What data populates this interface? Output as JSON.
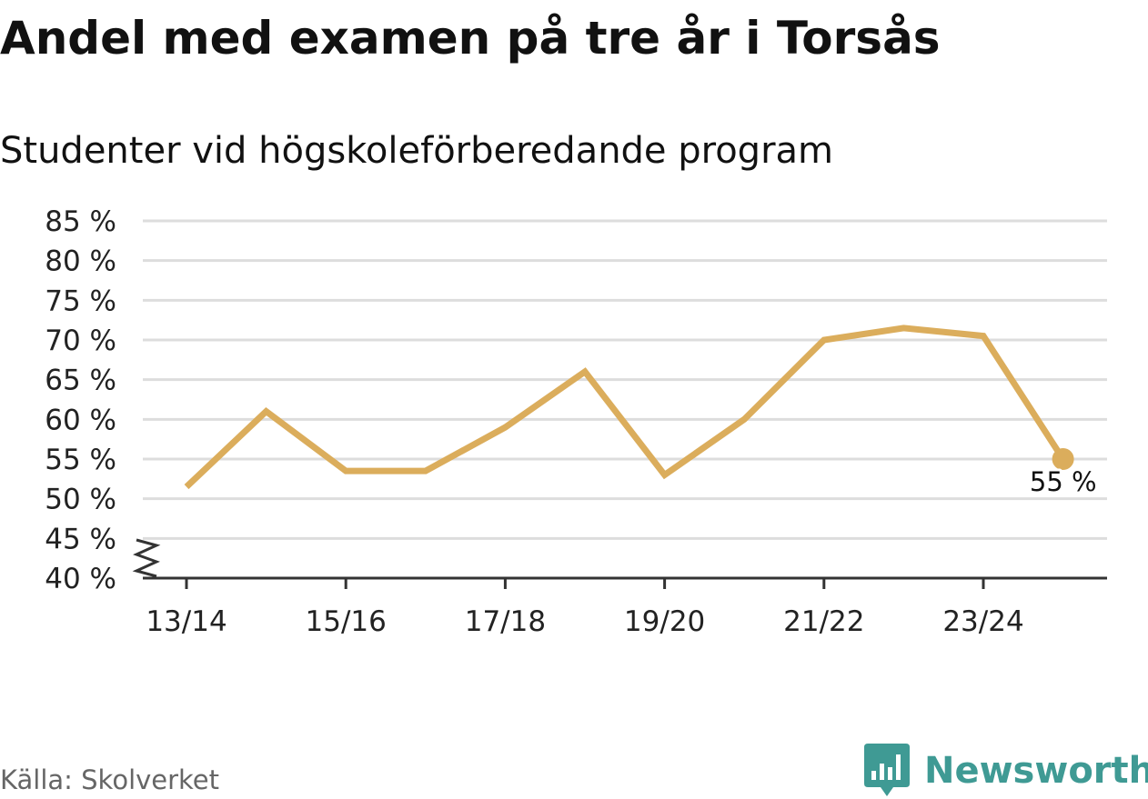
{
  "title": "Andel med examen på tre år i Torsås",
  "subtitle": "Studenter vid högskoleförberedande program",
  "source": "Källa: Skolverket",
  "brand": {
    "name": "Newsworthy",
    "icon": "newsworthy-bar-chart-icon"
  },
  "colors": {
    "line": "#dbad5c",
    "grid": "#dddddd",
    "axis": "#333333",
    "brand": "#3f9a94"
  },
  "chart_data": {
    "type": "line",
    "x": [
      "13/14",
      "14/15",
      "15/16",
      "16/17",
      "17/18",
      "18/19",
      "19/20",
      "20/21",
      "21/22",
      "22/23",
      "23/24",
      "24/25"
    ],
    "series": [
      {
        "values": [
          51.5,
          61,
          53.5,
          53.5,
          59,
          66,
          53,
          60,
          70,
          71.5,
          70.5,
          55
        ]
      }
    ],
    "x_tick_labels": [
      "13/14",
      "15/16",
      "17/18",
      "19/20",
      "21/22",
      "23/24"
    ],
    "y_ticks": [
      40,
      45,
      50,
      55,
      60,
      65,
      70,
      75,
      80,
      85
    ],
    "y_tick_labels": [
      "40 %",
      "45 %",
      "50 %",
      "55 %",
      "60 %",
      "65 %",
      "70 %",
      "75 %",
      "80 %",
      "85 %"
    ],
    "ylim": [
      40,
      85
    ],
    "y_axis_break": true,
    "grid": true,
    "last_value_label": "55 %",
    "xlabel": "",
    "ylabel": ""
  }
}
